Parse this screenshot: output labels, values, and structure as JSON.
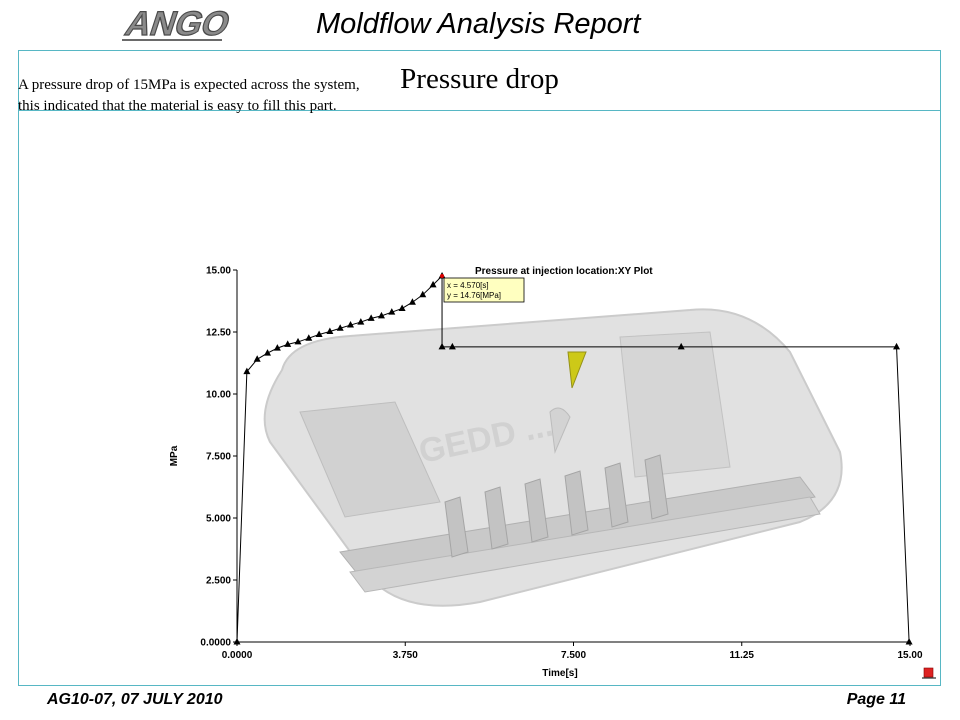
{
  "header": {
    "logo_text": "ANGO",
    "report_title": "Moldflow Analysis Report"
  },
  "slide": {
    "title": "Pressure drop",
    "body_lines": [
      "A pressure drop of 15MPa is expected across the system,",
      "this indicated  that the material is easy to fill this part."
    ]
  },
  "footer": {
    "left": "AG10-07, 07 JULY 2010",
    "right": "Page 11"
  },
  "colors": {
    "frame_border": "#57b7c4",
    "tooltip_bg": "#ffffc0",
    "gate_cone": "#c8c400"
  },
  "chart_data": {
    "type": "line",
    "title": "Pressure at injection location:XY Plot",
    "xlabel": "Time[s]",
    "ylabel": "MPa",
    "xlim": [
      0,
      15
    ],
    "ylim": [
      0,
      15
    ],
    "x_ticks": [
      "0.0000",
      "3.750",
      "7.500",
      "11.25",
      "15.00"
    ],
    "y_ticks": [
      "0.0000",
      "2.500",
      "5.000",
      "7.500",
      "10.00",
      "12.50",
      "15.00"
    ],
    "grid": false,
    "series": [
      {
        "x": [
          0.0,
          0.22,
          0.45,
          0.68,
          0.9,
          1.13,
          1.36,
          1.6,
          1.83,
          2.07,
          2.3,
          2.53,
          2.76,
          2.99,
          3.22,
          3.45,
          3.68,
          3.91,
          4.14,
          4.37,
          4.57,
          4.57,
          4.8,
          9.9,
          14.7,
          14.98
        ],
        "y": [
          0.0,
          10.9,
          11.4,
          11.65,
          11.85,
          12.0,
          12.1,
          12.25,
          12.4,
          12.52,
          12.65,
          12.78,
          12.9,
          13.05,
          13.15,
          13.3,
          13.45,
          13.7,
          14.0,
          14.4,
          14.76,
          11.9,
          11.9,
          11.9,
          11.9,
          0.0
        ]
      }
    ],
    "annotation": {
      "lines": [
        "x = 4.570[s]",
        "y = 14.76[MPa]"
      ]
    }
  }
}
